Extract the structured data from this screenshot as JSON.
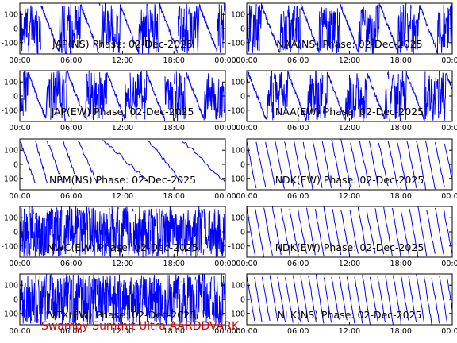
{
  "footer": {
    "text": "Swampy Summit Ultra AARDDVARK"
  },
  "colors": {
    "trace": "#0000ff",
    "axis": "#000000",
    "footer": "#dd0000"
  },
  "chart_data": [
    {
      "type": "line",
      "title": "JAP(NS) Phase: 02-Dec-2025",
      "pattern": "saturated blocks with sawtooth segments",
      "x_ticks": [
        "00:00",
        "06:00",
        "12:00",
        "18:00",
        "00:00"
      ],
      "y_ticks": [
        "100",
        "0",
        "-100"
      ],
      "xlim_hours": [
        0,
        24
      ],
      "ylim": [
        -180,
        180
      ]
    },
    {
      "type": "line",
      "title": "NAA(NS) Phase: 02-Dec-2025",
      "pattern": "saturated blocks with sawtooth segments",
      "x_ticks": [
        "00:00",
        "06:00",
        "12:00",
        "18:00",
        "00:00"
      ],
      "y_ticks": [
        "100",
        "0",
        "-100"
      ],
      "xlim_hours": [
        0,
        24
      ],
      "ylim": [
        -180,
        180
      ]
    },
    {
      "type": "line",
      "title": "JAP(EW) Phase: 02-Dec-2025",
      "pattern": "saturated blocks with sawtooth segments",
      "x_ticks": [
        "00:00",
        "06:00",
        "12:00",
        "18:00",
        "00:00"
      ],
      "y_ticks": [
        "100",
        "0",
        "-100"
      ],
      "xlim_hours": [
        0,
        24
      ],
      "ylim": [
        -180,
        180
      ]
    },
    {
      "type": "line",
      "title": "NAA(EW) Phase: 02-Dec-2025",
      "pattern": "saturated blocks with sawtooth segments",
      "x_ticks": [
        "00:00",
        "06:00",
        "12:00",
        "18:00",
        "00:00"
      ],
      "y_ticks": [
        "100",
        "0",
        "-100"
      ],
      "xlim_hours": [
        0,
        24
      ],
      "ylim": [
        -180,
        180
      ]
    },
    {
      "type": "line",
      "title": "NPM(NS) Phase: 02-Dec-2025",
      "pattern": "slow sawtooth descents",
      "x_ticks": [
        "00:00",
        "06:00",
        "12:00",
        "18:00",
        "00:00"
      ],
      "y_ticks": [
        "100",
        "0",
        "-100"
      ],
      "xlim_hours": [
        0,
        24
      ],
      "ylim": [
        -180,
        180
      ]
    },
    {
      "type": "line",
      "title": "NDK(EW) Phase: 02-Dec-2025",
      "pattern": "regular sawtooth wraps",
      "x_ticks": [
        "00:00",
        "06:00",
        "12:00",
        "18:00",
        "00:00"
      ],
      "y_ticks": [
        "100",
        "0",
        "-100"
      ],
      "xlim_hours": [
        0,
        24
      ],
      "ylim": [
        -180,
        180
      ]
    },
    {
      "type": "line",
      "title": "NWC(EW) Phase: 02-Dec-2025",
      "pattern": "dense noise",
      "x_ticks": [
        "00:00",
        "06:00",
        "12:00",
        "18:00",
        "00:00"
      ],
      "y_ticks": [
        "100",
        "0",
        "-100"
      ],
      "xlim_hours": [
        0,
        24
      ],
      "ylim": [
        -180,
        180
      ]
    },
    {
      "type": "line",
      "title": "NDK(EW) Phase: 02-Dec-2025",
      "pattern": "regular sawtooth wraps",
      "x_ticks": [
        "00:00",
        "06:00",
        "12:00",
        "18:00",
        "00:00"
      ],
      "y_ticks": [
        "100",
        "0",
        "-100"
      ],
      "xlim_hours": [
        0,
        24
      ],
      "ylim": [
        -180,
        180
      ]
    },
    {
      "type": "line",
      "title": "VTX(EW) Phase: 02-Dec-2025",
      "pattern": "dense noise",
      "x_ticks": [
        "00:00",
        "06:00",
        "12:00",
        "18:00",
        "00:00"
      ],
      "y_ticks": [
        "100",
        "0",
        "-100"
      ],
      "xlim_hours": [
        0,
        24
      ],
      "ylim": [
        -180,
        180
      ]
    },
    {
      "type": "line",
      "title": "NLK(NS) Phase: 02-Dec-2025",
      "pattern": "regular sawtooth wraps",
      "x_ticks": [
        "00:00",
        "06:00",
        "12:00",
        "18:00",
        "00:00"
      ],
      "y_ticks": [
        "100",
        "0",
        "-100"
      ],
      "xlim_hours": [
        0,
        24
      ],
      "ylim": [
        -180,
        180
      ]
    }
  ]
}
